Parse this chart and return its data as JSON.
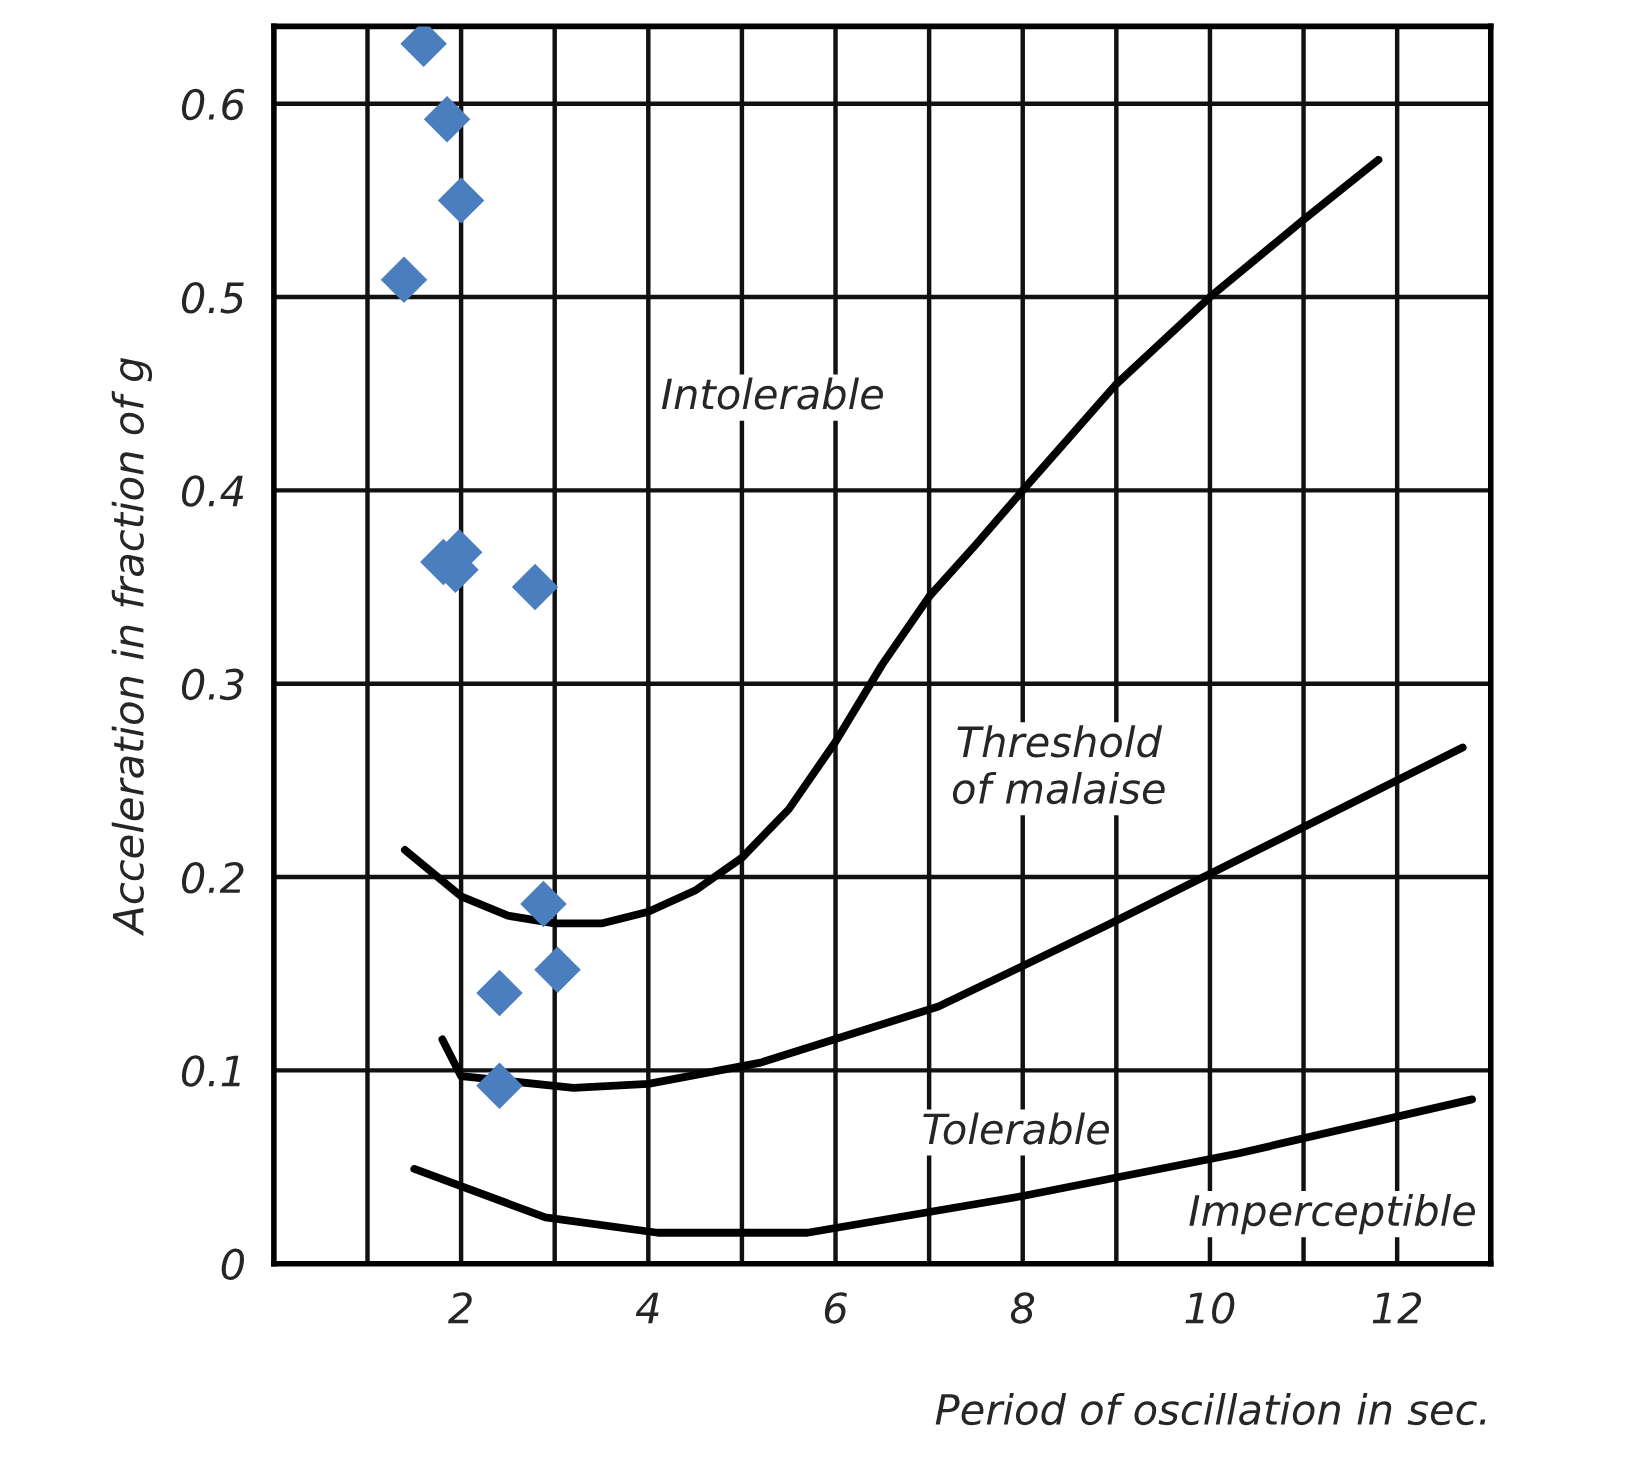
{
  "chart_data": {
    "type": "line",
    "xlabel": "Period of oscillation in sec.",
    "ylabel": "Acceleration in fraction of g",
    "xlim": [
      0,
      13
    ],
    "ylim": [
      0,
      0.64
    ],
    "xticks": [
      {
        "value": 1,
        "label": null
      },
      2,
      {
        "value": 3,
        "label": null
      },
      4,
      {
        "value": 5,
        "label": null
      },
      6,
      {
        "value": 7,
        "label": null
      },
      8,
      {
        "value": 9,
        "label": null
      },
      10,
      {
        "value": 11,
        "label": null
      },
      12
    ],
    "yticks": [
      0,
      0.1,
      0.2,
      0.3,
      0.4,
      0.5,
      0.6
    ],
    "grid": true,
    "line_style": "solid",
    "series": [
      {
        "color": "#000000",
        "marker": "none",
        "x": [
          1.4,
          2,
          2.5,
          3,
          3.5,
          4,
          4.5,
          5,
          5.5,
          6,
          6.5,
          7,
          7.5,
          8,
          9,
          10,
          11,
          11.8
        ],
        "values": [
          0.214,
          0.19,
          0.18,
          0.176,
          0.176,
          0.182,
          0.193,
          0.21,
          0.235,
          0.27,
          0.31,
          0.345,
          0.372,
          0.4,
          0.455,
          0.5,
          0.54,
          0.571
        ]
      },
      {
        "color": "#000000",
        "marker": "none",
        "x": [
          1.8,
          2,
          3.2,
          4,
          5.2,
          7.1,
          8.9,
          10.8,
          12.7
        ],
        "values": [
          0.116,
          0.097,
          0.091,
          0.093,
          0.104,
          0.133,
          0.175,
          0.221,
          0.267
        ]
      },
      {
        "color": "#000000",
        "marker": "none",
        "x": [
          1.5,
          2.9,
          4.1,
          5.7,
          8,
          10.3,
          12.8
        ],
        "values": [
          0.049,
          0.024,
          0.016,
          0.016,
          0.035,
          0.057,
          0.085
        ]
      },
      {
        "type": "scatter",
        "color": "#4a7ebf",
        "marker": "diamond",
        "x": [
          1.6,
          1.85,
          2.0,
          1.39,
          1.81,
          1.98,
          1.94,
          2.79,
          2.88,
          3.03,
          2.41,
          2.41
        ],
        "values": [
          0.631,
          0.592,
          0.55,
          0.509,
          0.363,
          0.368,
          0.359,
          0.35,
          0.186,
          0.152,
          0.14,
          0.092
        ]
      }
    ],
    "annotations": [
      "Intolerable",
      "Threshold\nof malaise",
      "Tolerable",
      "Imperceptible"
    ]
  }
}
